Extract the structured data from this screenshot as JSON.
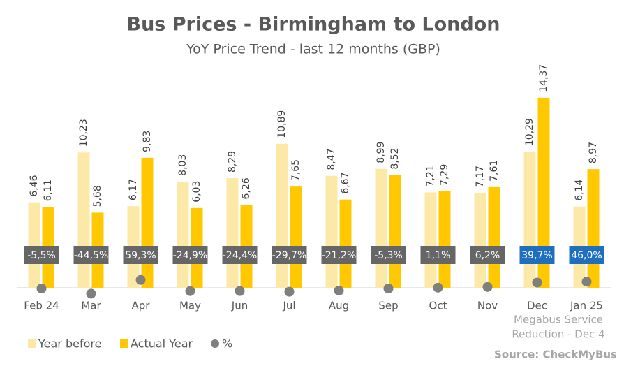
{
  "chart_data": {
    "type": "bar",
    "title": "Bus Prices - Birmingham to London",
    "subtitle": "YoY Price Trend - last 12 months (GBP)",
    "categories": [
      "Feb 24",
      "Mar",
      "Apr",
      "May",
      "Jun",
      "Jul",
      "Aug",
      "Sep",
      "Oct",
      "Nov",
      "Dec",
      "Jan 25"
    ],
    "series": [
      {
        "name": "Year before",
        "color": "#fce9a8",
        "values": [
          6.46,
          10.23,
          6.17,
          8.03,
          8.29,
          10.89,
          8.47,
          8.99,
          7.21,
          7.17,
          10.29,
          6.14
        ],
        "value_labels": [
          "6,46",
          "10,23",
          "6,17",
          "8,03",
          "8,29",
          "10,89",
          "8,47",
          "8,99",
          "7,21",
          "7,17",
          "10,29",
          "6,14"
        ]
      },
      {
        "name": "Actual Year",
        "color": "#ffc800",
        "values": [
          6.11,
          5.68,
          9.83,
          6.03,
          6.26,
          7.65,
          6.67,
          8.52,
          7.29,
          7.61,
          14.37,
          8.97
        ],
        "value_labels": [
          "6,11",
          "5,68",
          "9,83",
          "6,03",
          "6,26",
          "7,65",
          "6,67",
          "8,52",
          "7,29",
          "7,61",
          "14,37",
          "8,97"
        ]
      },
      {
        "name": "%",
        "color": "#7f7f7f",
        "axis": "y2",
        "values": [
          -5.5,
          -44.5,
          59.3,
          -24.9,
          -24.4,
          -29.7,
          -21.2,
          -5.3,
          1.1,
          6.2,
          39.7,
          46.0
        ],
        "value_labels": [
          "-5,5%",
          "-44,5%",
          "59,3%",
          "-24,9%",
          "-24,4%",
          "-29,7%",
          "-21,2%",
          "-5,3%",
          "1,1%",
          "6,2%",
          "39,7%",
          "46,0%"
        ],
        "label_colors": [
          "#666666",
          "#666666",
          "#666666",
          "#666666",
          "#666666",
          "#666666",
          "#666666",
          "#666666",
          "#666666",
          "#666666",
          "#1f6fbf",
          "#1f6fbf"
        ]
      }
    ],
    "ylim": [
      0,
      16
    ],
    "y2lim": [
      0,
      1600
    ],
    "annotation": [
      "Megabus Service",
      "Reduction - Dec 4"
    ],
    "source": "Source: CheckMyBus"
  }
}
